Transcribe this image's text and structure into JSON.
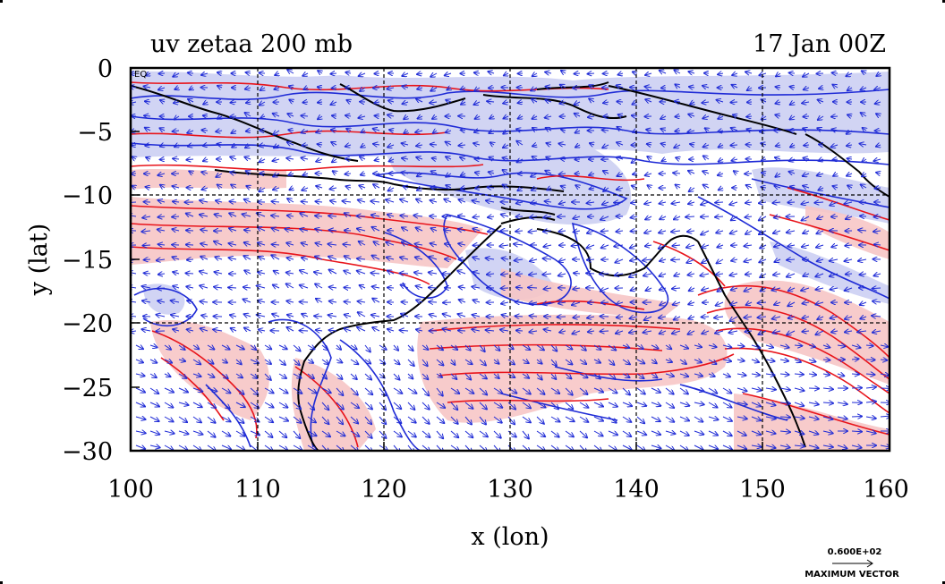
{
  "title": "uv zetaa 200 mb",
  "date": "17 Jan 00Z",
  "x_axis": {
    "label": "x (lon)",
    "ticks": [
      "100",
      "110",
      "120",
      "130",
      "140",
      "150",
      "160"
    ]
  },
  "y_axis": {
    "label": "y (lat)",
    "ticks": [
      "0",
      "−5",
      "−10",
      "−15",
      "−20",
      "−25",
      "−30"
    ]
  },
  "corner_label": "EQ",
  "max_vector": {
    "value": "0.600E+02",
    "label": "MAXIMUM VECTOR"
  },
  "colors": {
    "positive_contour": "#e8141b",
    "negative_contour": "#1f2bd6",
    "positive_fill": "#f7c6c6",
    "negative_fill": "#c9cdf2",
    "coastline": "#000000",
    "vector": "#1f2bd6"
  },
  "chart_data": {
    "type": "map",
    "variable": "uv zetaa",
    "level": "200 mb",
    "lon_range": [
      100,
      160
    ],
    "lat_range": [
      -30,
      0
    ],
    "grid": true
  }
}
